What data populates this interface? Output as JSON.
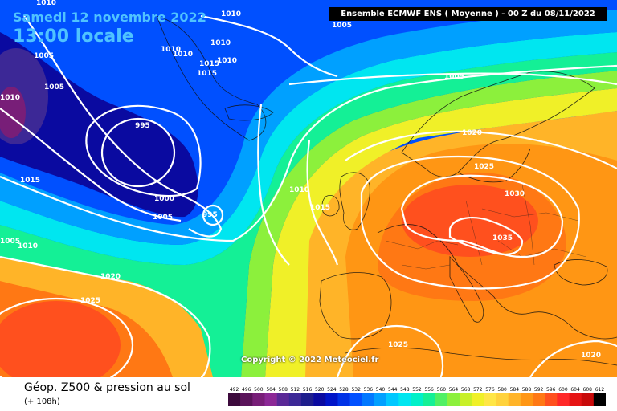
{
  "header": {
    "date": "Samedi 12 novembre 2022",
    "local_time": "13:00 locale",
    "run_info": "Ensemble ECMWF ENS  ( Moyenne )  - 00 Z du 08/11/2022"
  },
  "footer": {
    "title": "Géop. Z500 & pression au sol",
    "subtitle": "(+ 108h)",
    "copyright": "Copyright © 2022 Meteociel.fr"
  },
  "legend": {
    "values": [
      "492",
      "496",
      "500",
      "504",
      "508",
      "512",
      "516",
      "520",
      "524",
      "528",
      "532",
      "536",
      "540",
      "544",
      "548",
      "552",
      "556",
      "560",
      "564",
      "568",
      "572",
      "576",
      "580",
      "584",
      "588",
      "592",
      "596",
      "600",
      "604",
      "608",
      "612"
    ],
    "colors": [
      "#3c0a3c",
      "#5a145a",
      "#781e78",
      "#8c2896",
      "#5a2896",
      "#3c2896",
      "#1e1e8c",
      "#0a0aa0",
      "#0014c8",
      "#0032e6",
      "#0050ff",
      "#0078ff",
      "#00a0ff",
      "#00c8ff",
      "#00e6f0",
      "#00f0c8",
      "#14f096",
      "#50f064",
      "#8cf03c",
      "#c8f028",
      "#f0f028",
      "#ffe646",
      "#ffd23c",
      "#ffb428",
      "#ff9614",
      "#ff7814",
      "#ff501e",
      "#ff2828",
      "#e61414",
      "#c80a0a",
      "#000000"
    ]
  },
  "isobars": [
    {
      "label": "1010"
    },
    {
      "label": "1005"
    },
    {
      "label": "1010"
    },
    {
      "label": "1010"
    },
    {
      "label": "1010"
    },
    {
      "label": "1015"
    },
    {
      "label": "1015"
    },
    {
      "label": "1010"
    },
    {
      "label": "1010"
    },
    {
      "label": "1010"
    },
    {
      "label": "1005"
    },
    {
      "label": "1005"
    },
    {
      "label": "995"
    },
    {
      "label": "1000"
    },
    {
      "label": "1005"
    },
    {
      "label": "995"
    },
    {
      "label": "1015"
    },
    {
      "label": "1005"
    },
    {
      "label": "1010"
    },
    {
      "label": "1020"
    },
    {
      "label": "1025"
    },
    {
      "label": "1010"
    },
    {
      "label": "1015"
    },
    {
      "label": "1005"
    },
    {
      "label": "1020"
    },
    {
      "label": "1025"
    },
    {
      "label": "1030"
    },
    {
      "label": "1035"
    },
    {
      "label": "1025"
    },
    {
      "label": "1020"
    }
  ],
  "colors": {
    "isobar": "#ffffff",
    "header_text": "#4fc3ff"
  }
}
